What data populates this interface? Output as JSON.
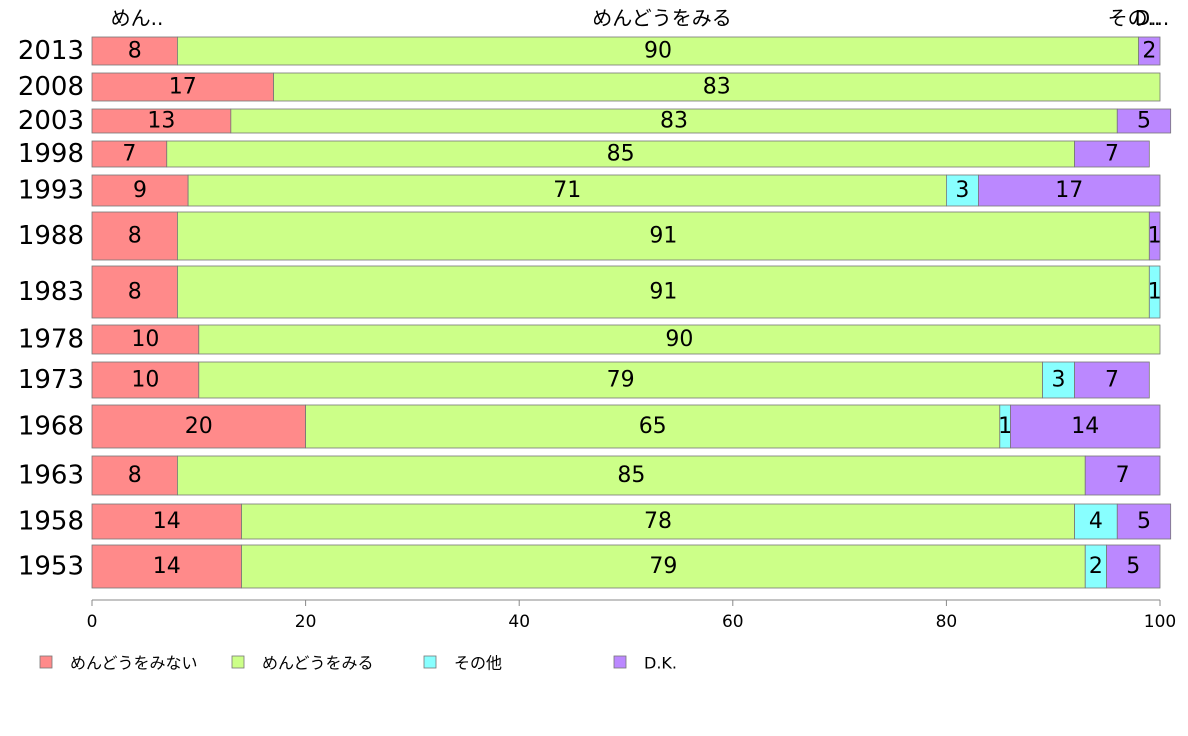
{
  "chart_data": {
    "type": "bar",
    "orientation": "horizontal",
    "stacked": true,
    "title": "",
    "xlabel": "",
    "ylabel": "",
    "xlim": [
      0,
      100
    ],
    "x_ticks": [
      "0",
      "20",
      "40",
      "60",
      "80",
      "100"
    ],
    "categories": [
      "2013",
      "2008",
      "2003",
      "1998",
      "1993",
      "1988",
      "1983",
      "1978",
      "1973",
      "1968",
      "1963",
      "1958",
      "1953"
    ],
    "series": [
      {
        "name": "めんどうをみない",
        "color": "#ff8a8a",
        "values": [
          8,
          17,
          13,
          7,
          9,
          8,
          8,
          10,
          10,
          20,
          8,
          14,
          14
        ]
      },
      {
        "name": "めんどうをみる",
        "color": "#ccff88",
        "values": [
          90,
          83,
          83,
          85,
          71,
          91,
          91,
          90,
          79,
          65,
          85,
          78,
          79
        ]
      },
      {
        "name": "その他",
        "color": "#88ffff",
        "values": [
          0,
          0,
          0,
          0,
          3,
          0,
          1,
          0,
          3,
          1,
          0,
          4,
          2
        ]
      },
      {
        "name": "D.K.",
        "color": "#bb88ff",
        "values": [
          2,
          0,
          5,
          7,
          17,
          1,
          0,
          0,
          7,
          14,
          7,
          5,
          5
        ]
      }
    ],
    "top_labels": [
      "めん..",
      "めんどうをみる",
      "その..",
      "D..."
    ],
    "legend_position": "bottom-left",
    "grid": false
  }
}
